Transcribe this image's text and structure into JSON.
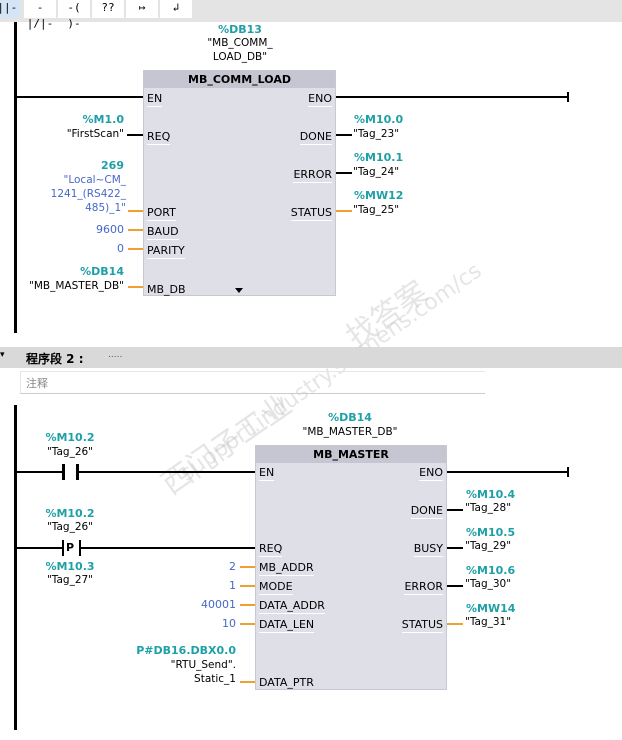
{
  "toolbar": {
    "buttons": [
      {
        "icon": "normally-open-contact-icon",
        "label": "-||-"
      },
      {
        "icon": "normally-closed-contact-icon",
        "label": "-|/|-"
      },
      {
        "icon": "coil-icon",
        "label": "-( )-"
      },
      {
        "icon": "empty-box-icon",
        "label": "??"
      },
      {
        "icon": "open-branch-icon",
        "label": "↦"
      },
      {
        "icon": "close-branch-icon",
        "label": "↲"
      }
    ]
  },
  "network1": {
    "instance": {
      "addr": "%DB13",
      "name1": "\"MB_COMM_",
      "name2": "LOAD_DB\""
    },
    "block": {
      "title": "MB_COMM_LOAD",
      "en": "EN",
      "eno": "ENO",
      "inputs": [
        {
          "pin": "REQ",
          "addr": "%M1.0",
          "tag": "\"FirstScan\""
        },
        {
          "pin": "PORT",
          "addr": "269",
          "tag1": "\"Local~CM_",
          "tag2": "1241_(RS422_",
          "tag3": "485)_1\""
        },
        {
          "pin": "BAUD",
          "value": "9600"
        },
        {
          "pin": "PARITY",
          "value": "0"
        },
        {
          "pin": "MB_DB",
          "addr": "%DB14",
          "tag": "\"MB_MASTER_DB\""
        }
      ],
      "outputs": [
        {
          "pin": "DONE",
          "addr": "%M10.0",
          "tag": "\"Tag_23\""
        },
        {
          "pin": "ERROR",
          "addr": "%M10.1",
          "tag": "\"Tag_24\""
        },
        {
          "pin": "STATUS",
          "addr": "%MW12",
          "tag": "\"Tag_25\""
        }
      ]
    }
  },
  "network2": {
    "header": {
      "title": "程序段 2 :",
      "dots": "....."
    },
    "comment": "注释",
    "contact1": {
      "addr": "%M10.2",
      "tag": "\"Tag_26\""
    },
    "contact2": {
      "addr": "%M10.2",
      "tag": "\"Tag_26\"",
      "label": "P",
      "addr2": "%M10.3",
      "tag2": "\"Tag_27\""
    },
    "instance": {
      "addr": "%DB14",
      "name": "\"MB_MASTER_DB\""
    },
    "block": {
      "title": "MB_MASTER",
      "en": "EN",
      "eno": "ENO",
      "req": "REQ",
      "inputs": [
        {
          "pin": "MB_ADDR",
          "value": "2"
        },
        {
          "pin": "MODE",
          "value": "1"
        },
        {
          "pin": "DATA_ADDR",
          "value": "40001"
        },
        {
          "pin": "DATA_LEN",
          "value": "10"
        },
        {
          "pin": "DATA_PTR",
          "addr": "P#DB16.DBX0.0",
          "tag1": "\"RTU_Send\".",
          "tag2": "Static_1"
        }
      ],
      "outputs": [
        {
          "pin": "DONE",
          "addr": "%M10.4",
          "tag": "\"Tag_28\""
        },
        {
          "pin": "BUSY",
          "addr": "%M10.5",
          "tag": "\"Tag_29\""
        },
        {
          "pin": "ERROR",
          "addr": "%M10.6",
          "tag": "\"Tag_30\""
        },
        {
          "pin": "STATUS",
          "addr": "%MW14",
          "tag": "\"Tag_31\""
        }
      ]
    }
  },
  "watermark": {
    "line1": "西门子工业",
    "line2": "support.industry.siemens.com/cs",
    "line3": "找答案"
  }
}
